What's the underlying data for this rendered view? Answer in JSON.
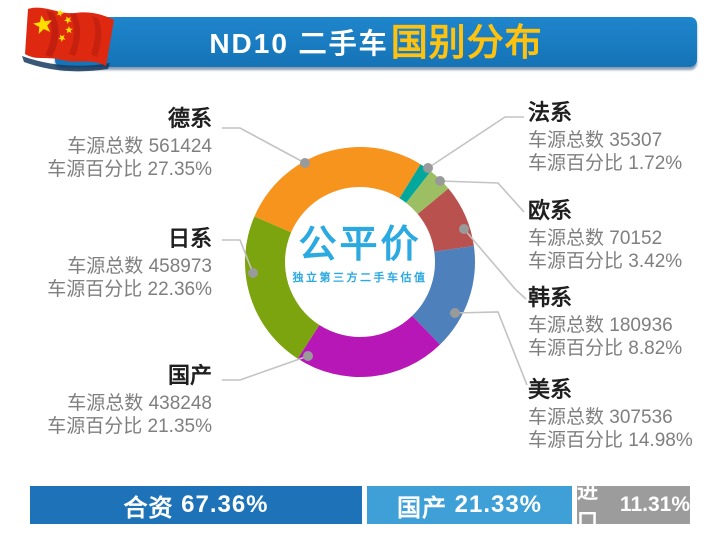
{
  "header": {
    "title_prefix": "ND10 二手车",
    "title_highlight": "国别分布",
    "banner_color": "#1779C2",
    "highlight_color": "#FFC20E",
    "flag_icon": "china-flag"
  },
  "center_logo": {
    "title": "公平价",
    "subtitle": "独立第三方二手车估值",
    "color": "#2BA9E1"
  },
  "chart_data": {
    "type": "pie",
    "subtype": "donut",
    "title": "ND10 二手车国别分布",
    "start_angle_deg": -66.7,
    "outer_radius": 115,
    "inner_radius": 75,
    "value_label": "车源总数",
    "percent_label": "车源百分比",
    "segments": [
      {
        "name": "德系",
        "total": "561424",
        "percent": 27.35,
        "percent_display": "27.35%",
        "color": "#F7941E"
      },
      {
        "name": "法系",
        "total": "35307",
        "percent": 1.72,
        "percent_display": "1.72%",
        "color": "#04A79B"
      },
      {
        "name": "欧系",
        "total": "70152",
        "percent": 3.42,
        "percent_display": "3.42%",
        "color": "#9CBF63"
      },
      {
        "name": "韩系",
        "total": "180936",
        "percent": 8.82,
        "percent_display": "8.82%",
        "color": "#B9524E"
      },
      {
        "name": "美系",
        "total": "307536",
        "percent": 14.98,
        "percent_display": "14.98%",
        "color": "#4E80BB"
      },
      {
        "name": "国产",
        "total": "438248",
        "percent": 21.35,
        "percent_display": "21.35%",
        "color": "#B817B8"
      },
      {
        "name": "日系",
        "total": "458973",
        "percent": 22.36,
        "percent_display": "22.36%",
        "color": "#7CA40E"
      }
    ]
  },
  "footer_bars": [
    {
      "label": "合资",
      "value": "67.36%",
      "color": "#1E73B8"
    },
    {
      "label": "国产",
      "value": "21.33%",
      "color": "#3FA0D8"
    },
    {
      "label": "进口",
      "value": "11.31%",
      "color": "#9C9C9C"
    }
  ]
}
